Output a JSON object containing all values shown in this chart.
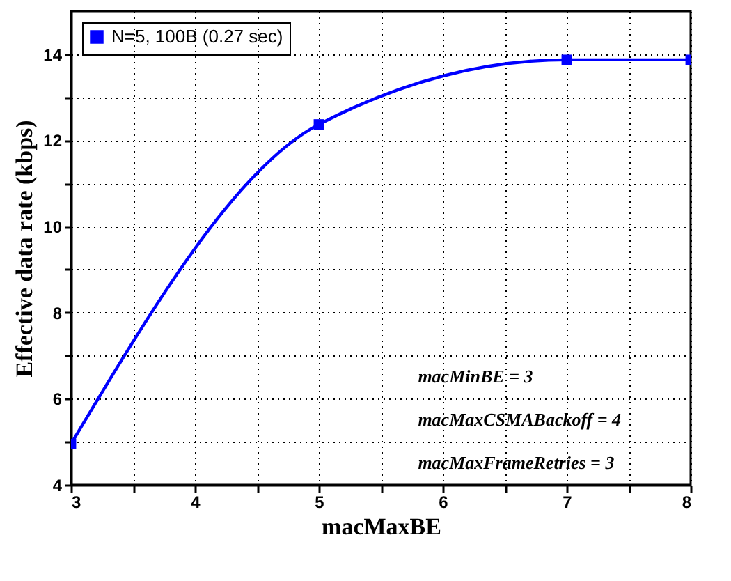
{
  "chart_data": {
    "type": "line",
    "xlabel": "macMaxBE",
    "ylabel": "Effective data rate (kbps)",
    "x": [
      3,
      5,
      7,
      8
    ],
    "series": [
      {
        "name": "N=5, 100B (0.27 sec)",
        "color": "#0000ff",
        "values": [
          4.95,
          12.37,
          13.87,
          13.87
        ]
      }
    ],
    "xlim": [
      3,
      8
    ],
    "xticks": [
      3,
      {
        "value": 3.5,
        "label": null
      },
      4,
      {
        "value": 4.5,
        "label": null
      },
      5,
      {
        "value": 5.5,
        "label": null
      },
      6,
      {
        "value": 6.5,
        "label": null
      },
      7,
      {
        "value": 7.5,
        "label": null
      },
      8
    ],
    "ylim": [
      4,
      15
    ],
    "yticks": [
      4,
      {
        "value": 5,
        "label": null
      },
      6,
      {
        "value": 7,
        "label": null
      },
      8,
      {
        "value": 9,
        "label": null
      },
      10,
      {
        "value": 11,
        "label": null
      },
      12,
      {
        "value": 13,
        "label": null
      },
      14
    ],
    "grid": true,
    "legend": "top left",
    "marker": "square",
    "line_style": "solid",
    "annotations": [
      "macMinBE = 3",
      "macMaxCSMABackoff = 4",
      "macMaxFrameRetries = 3"
    ]
  }
}
